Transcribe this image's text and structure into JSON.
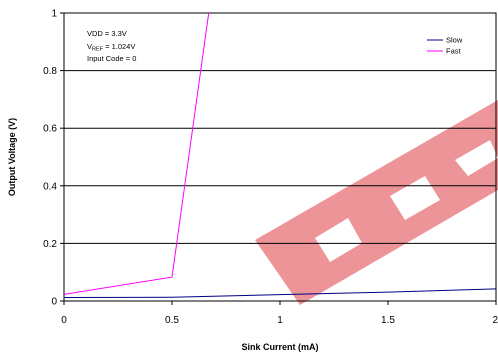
{
  "chart_data": {
    "type": "line",
    "title": "",
    "xlabel": "Sink Current (mA)",
    "ylabel": "Output Voltage (V)",
    "xlim": [
      0,
      2
    ],
    "ylim": [
      0,
      1
    ],
    "xticks": [
      "0",
      "0.5",
      "1",
      "1.5",
      "2"
    ],
    "yticks": [
      "0",
      "0.2",
      "0.4",
      "0.6",
      "0.8",
      "1"
    ],
    "grid": "horizontal",
    "legend_position": "top-right",
    "annotations": {
      "vdd": "VDD = 3.3V",
      "vref_main": "V",
      "vref_sub": "REF",
      "vref_value": " = 1.024V",
      "input_code": "Input Code = 0"
    },
    "series": [
      {
        "name": "Slow",
        "color": "#000080",
        "x": [
          0,
          0.5,
          1,
          1.5,
          2
        ],
        "y": [
          0.012,
          0.013,
          0.022,
          0.031,
          0.042
        ]
      },
      {
        "name": "Fast",
        "color": "#ff00ff",
        "x": [
          0,
          0.5,
          0.67
        ],
        "y": [
          0.023,
          0.083,
          1.0
        ]
      }
    ]
  }
}
